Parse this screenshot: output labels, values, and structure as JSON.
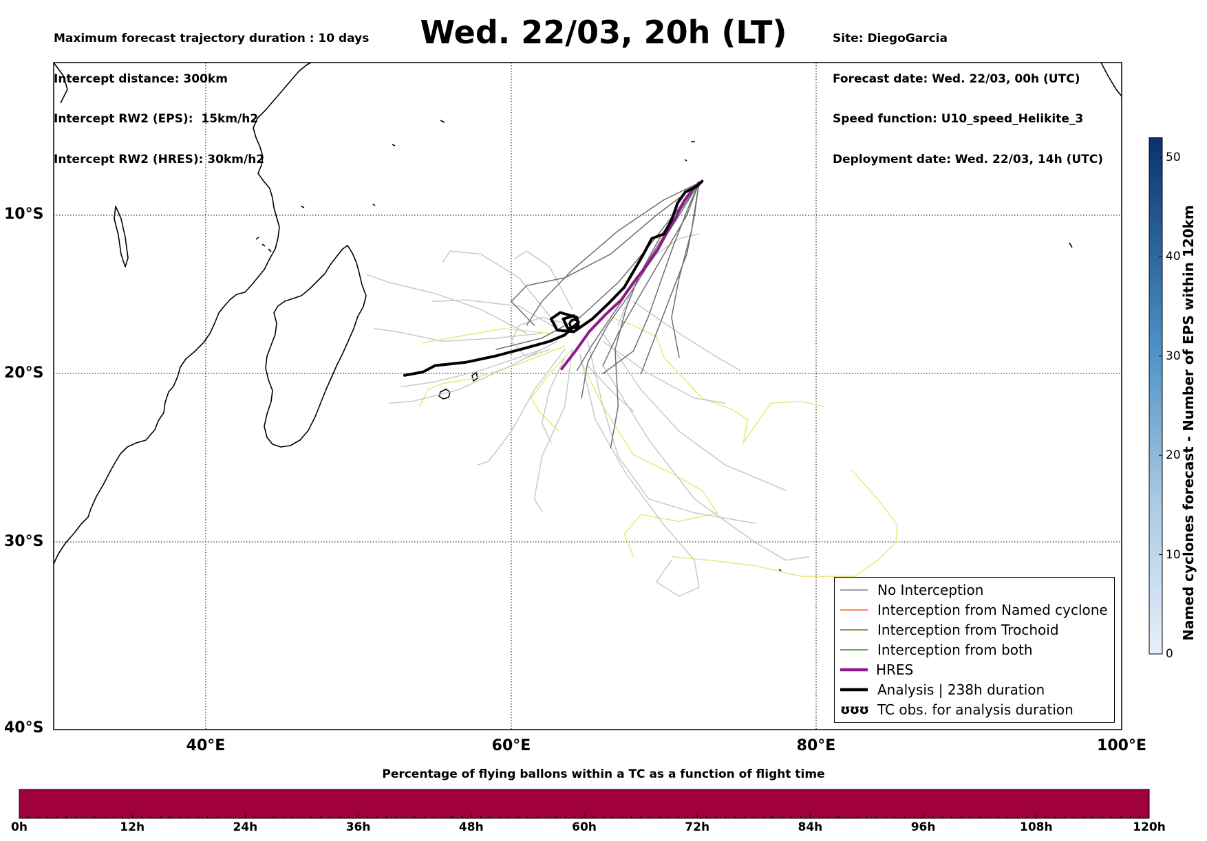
{
  "header": {
    "info_left": [
      "Maximum forecast trajectory duration : 10 days",
      "Intercept distance: 300km",
      "Intercept RW2 (EPS):  15km/h2",
      "Intercept RW2 (HRES): 30km/h2"
    ],
    "title": "Wed. 22/03, 20h (LT)",
    "info_right": [
      "Site: DiegoGarcia",
      "Forecast date: Wed. 22/03, 00h (UTC)",
      "Speed function: U10_speed_Helikite_3",
      "Deployment date: Wed. 22/03, 14h (UTC)"
    ]
  },
  "map": {
    "lat_labels": [
      "10°S",
      "20°S",
      "30°S",
      "40°S"
    ],
    "lon_labels": [
      "40°E",
      "60°E",
      "80°E",
      "100°E"
    ],
    "extent": {
      "lon_min": 30,
      "lon_max": 100,
      "lat_min": -40,
      "lat_max": -1
    }
  },
  "legend": {
    "items": [
      {
        "label": "No Interception",
        "color": "#808080"
      },
      {
        "label": "Interception from Named cyclone",
        "color": "#ff5a1e"
      },
      {
        "label": "Interception from Trochoid",
        "color": "#7a6a14"
      },
      {
        "label": "Interception from both",
        "color": "#1a9a1a"
      },
      {
        "label": "HRES",
        "color": "#8b1a8b"
      },
      {
        "label": "Analysis | 238h duration",
        "color": "#000000"
      },
      {
        "label": "TC obs. for analysis duration",
        "glyph": "ʊʊʊ"
      }
    ]
  },
  "colorbar_right": {
    "label": "Named cyclones forecast - Number of EPS within 120km",
    "ticks": [
      "0",
      "10",
      "20",
      "30",
      "40",
      "50"
    ],
    "min": 0,
    "max": 52
  },
  "colorbar_bottom": {
    "title": "Percentage of flying ballons within a TC as a function of flight time",
    "ticks": [
      "0h",
      "12h",
      "24h",
      "36h",
      "48h",
      "60h",
      "72h",
      "84h",
      "96h",
      "108h",
      "120h"
    ],
    "fill_color": "#a0003c"
  },
  "colors": {
    "eps_dark": "#6e6e6e",
    "eps_light": "#c8c8c8",
    "eps_yellow": "#ece67a",
    "hres": "#8b1a8b",
    "analysis": "#000000"
  },
  "tracks": {
    "analysis": [
      [
        53,
        -20.1
      ],
      [
        54.2,
        -19.9
      ],
      [
        55,
        -19.5
      ],
      [
        57,
        -19.3
      ],
      [
        59,
        -18.9
      ],
      [
        61,
        -18.4
      ],
      [
        62.5,
        -18
      ],
      [
        63.5,
        -17.6
      ],
      [
        64.4,
        -16.8
      ],
      [
        64.1,
        -16.4
      ],
      [
        63.4,
        -16.6
      ],
      [
        63.7,
        -17.2
      ],
      [
        64.4,
        -17.1
      ],
      [
        64.3,
        -16.5
      ],
      [
        63.2,
        -16.2
      ],
      [
        62.6,
        -16.6
      ],
      [
        63,
        -17.3
      ],
      [
        64.1,
        -17.4
      ],
      [
        65.3,
        -16.6
      ],
      [
        66.4,
        -15.6
      ],
      [
        67.4,
        -14.6
      ],
      [
        68,
        -13.6
      ],
      [
        68.6,
        -12.6
      ],
      [
        69.2,
        -11.5
      ],
      [
        70,
        -11.2
      ],
      [
        70.5,
        -10.3
      ],
      [
        70.9,
        -9.2
      ],
      [
        71.4,
        -8.5
      ],
      [
        72.2,
        -8.1
      ],
      [
        72.5,
        -7.8
      ]
    ],
    "hres": [
      [
        63.3,
        -19.7
      ],
      [
        64.2,
        -18.6
      ],
      [
        65.1,
        -17.4
      ],
      [
        66.2,
        -16.3
      ],
      [
        67.2,
        -15.4
      ],
      [
        68,
        -14.3
      ],
      [
        68.8,
        -13.3
      ],
      [
        69.6,
        -12.2
      ],
      [
        70.2,
        -11.1
      ],
      [
        70.8,
        -10.1
      ],
      [
        71.3,
        -9.1
      ],
      [
        71.9,
        -8.3
      ],
      [
        72.3,
        -7.9
      ]
    ],
    "eps_dark": [
      [
        [
          72.3,
          -7.9
        ],
        [
          71,
          -9.5
        ],
        [
          69,
          -12
        ],
        [
          67,
          -14.3
        ],
        [
          64.5,
          -16.5
        ],
        [
          62,
          -17.8
        ],
        [
          59,
          -18.5
        ]
      ],
      [
        [
          72.3,
          -7.9
        ],
        [
          71.5,
          -10
        ],
        [
          70,
          -12.5
        ],
        [
          68.5,
          -15
        ],
        [
          67,
          -17.5
        ],
        [
          66,
          -19.5
        ]
      ],
      [
        [
          72.3,
          -7.9
        ],
        [
          72,
          -10
        ],
        [
          71.5,
          -12.5
        ],
        [
          70.5,
          -15
        ],
        [
          69.5,
          -17.5
        ],
        [
          68.5,
          -20
        ]
      ],
      [
        [
          72.3,
          -7.9
        ],
        [
          70,
          -9
        ],
        [
          67,
          -11
        ],
        [
          64,
          -13.5
        ],
        [
          62,
          -15.5
        ],
        [
          61,
          -17
        ]
      ],
      [
        [
          72.3,
          -7.9
        ],
        [
          71.2,
          -9.2
        ],
        [
          69.7,
          -11.5
        ],
        [
          68.4,
          -13.8
        ],
        [
          67.5,
          -16
        ],
        [
          66.8,
          -18.5
        ],
        [
          67,
          -22
        ],
        [
          66.5,
          -24.5
        ]
      ],
      [
        [
          72.3,
          -7.9
        ],
        [
          70.5,
          -10.5
        ],
        [
          68.6,
          -13.5
        ],
        [
          66.8,
          -16.1
        ],
        [
          65.3,
          -18.2
        ],
        [
          64.3,
          -19.8
        ]
      ],
      [
        [
          72.3,
          -7.9
        ],
        [
          71.8,
          -11
        ],
        [
          71,
          -14
        ],
        [
          70.5,
          -16.5
        ],
        [
          71,
          -19
        ]
      ],
      [
        [
          72.3,
          -7.9
        ],
        [
          69.5,
          -10
        ],
        [
          66.5,
          -12.5
        ],
        [
          63.5,
          -14
        ],
        [
          61,
          -14.5
        ],
        [
          60,
          -15.5
        ],
        [
          61.5,
          -17
        ]
      ],
      [
        [
          72.3,
          -7.9
        ],
        [
          71,
          -10
        ],
        [
          69.5,
          -12.3
        ],
        [
          68,
          -14.7
        ],
        [
          66.3,
          -17
        ],
        [
          65,
          -19.3
        ],
        [
          64.6,
          -21.5
        ]
      ],
      [
        [
          72.3,
          -7.9
        ],
        [
          71.6,
          -9.5
        ],
        [
          70.6,
          -12
        ],
        [
          69.8,
          -14.2
        ],
        [
          69,
          -16.4
        ],
        [
          68,
          -18.6
        ],
        [
          66,
          -20
        ]
      ]
    ],
    "eps_light": [
      [
        [
          61,
          -17.5
        ],
        [
          58,
          -16
        ],
        [
          55,
          -15
        ],
        [
          52,
          -14.3
        ],
        [
          50.5,
          -13.8
        ]
      ],
      [
        [
          62,
          -17.5
        ],
        [
          59,
          -17.8
        ],
        [
          55.5,
          -18
        ],
        [
          52.5,
          -17.4
        ],
        [
          51,
          -17.2
        ]
      ],
      [
        [
          63,
          -18
        ],
        [
          60,
          -19.5
        ],
        [
          56.5,
          -21
        ],
        [
          53.5,
          -21.7
        ],
        [
          52,
          -21.8
        ]
      ],
      [
        [
          63.5,
          -18.5
        ],
        [
          61.5,
          -21
        ],
        [
          60,
          -23.5
        ],
        [
          58.5,
          -25.3
        ],
        [
          57.8,
          -25.5
        ]
      ],
      [
        [
          64,
          -18.5
        ],
        [
          63.5,
          -22
        ],
        [
          62,
          -25
        ],
        [
          61.5,
          -27.5
        ],
        [
          62,
          -28.2
        ]
      ],
      [
        [
          65,
          -18
        ],
        [
          66,
          -22
        ],
        [
          67,
          -25
        ],
        [
          69,
          -27.5
        ],
        [
          72,
          -28.3
        ],
        [
          76,
          -28.9
        ]
      ],
      [
        [
          66,
          -17.5
        ],
        [
          68.5,
          -21
        ],
        [
          71,
          -23.5
        ],
        [
          74,
          -25.5
        ],
        [
          78,
          -27
        ]
      ],
      [
        [
          64.5,
          -18.8
        ],
        [
          65.5,
          -22.8
        ],
        [
          67.5,
          -26
        ],
        [
          70,
          -29
        ],
        [
          72,
          -31
        ],
        [
          72.3,
          -32.5
        ],
        [
          71,
          -33
        ],
        [
          69.5,
          -32.2
        ],
        [
          70.5,
          -31
        ]
      ],
      [
        [
          63,
          -17
        ],
        [
          60.5,
          -14
        ],
        [
          58,
          -12.5
        ],
        [
          56,
          -12.3
        ],
        [
          55.5,
          -13
        ]
      ],
      [
        [
          64,
          -16
        ],
        [
          62.5,
          -13.3
        ],
        [
          61,
          -12.3
        ],
        [
          60.2,
          -12.8
        ]
      ],
      [
        [
          68,
          -15.5
        ],
        [
          71,
          -17.5
        ],
        [
          73.5,
          -19
        ],
        [
          75,
          -19.8
        ]
      ],
      [
        [
          66,
          -19.5
        ],
        [
          69,
          -24
        ],
        [
          72,
          -27.5
        ],
        [
          76,
          -30
        ],
        [
          78,
          -31
        ],
        [
          79.5,
          -30.8
        ]
      ],
      [
        [
          62,
          -18.5
        ],
        [
          58,
          -19.8
        ],
        [
          55,
          -20.5
        ],
        [
          52.8,
          -20.8
        ]
      ],
      [
        [
          63.5,
          -19
        ],
        [
          62.5,
          -21
        ],
        [
          62,
          -23
        ],
        [
          62.6,
          -24.2
        ]
      ],
      [
        [
          67,
          -17
        ],
        [
          68,
          -14.5
        ],
        [
          69.5,
          -12.5
        ],
        [
          71,
          -11.5
        ],
        [
          72.3,
          -11.2
        ]
      ],
      [
        [
          64,
          -17
        ],
        [
          62,
          -16.5
        ],
        [
          60.5,
          -17
        ],
        [
          60,
          -18
        ],
        [
          61,
          -19
        ],
        [
          62.5,
          -18.5
        ]
      ],
      [
        [
          66,
          -18
        ],
        [
          69,
          -20
        ],
        [
          72,
          -21.5
        ],
        [
          74,
          -21.8
        ]
      ],
      [
        [
          63.5,
          -17.5
        ],
        [
          60.5,
          -15.8
        ],
        [
          57,
          -15.4
        ],
        [
          54.8,
          -15.5
        ]
      ],
      [
        [
          65,
          -19.5
        ],
        [
          66.8,
          -21.3
        ],
        [
          68,
          -22.3
        ]
      ]
    ],
    "eps_yellow": [
      [
        [
          62.5,
          -17.5
        ],
        [
          59.5,
          -17.2
        ],
        [
          56.5,
          -17.7
        ],
        [
          54.2,
          -18.1
        ]
      ],
      [
        [
          63.5,
          -18.3
        ],
        [
          60.5,
          -19.4
        ],
        [
          57.5,
          -20.3
        ],
        [
          55.5,
          -20.6
        ],
        [
          54.5,
          -21
        ],
        [
          54,
          -22
        ]
      ],
      [
        [
          64,
          -18.5
        ],
        [
          62.5,
          -20
        ],
        [
          61.3,
          -21.5
        ],
        [
          61.8,
          -22.3
        ],
        [
          63.1,
          -23.5
        ]
      ],
      [
        [
          64.5,
          -19.1
        ],
        [
          66,
          -22
        ],
        [
          68,
          -24.9
        ],
        [
          70.5,
          -26
        ],
        [
          72.5,
          -27
        ],
        [
          73.5,
          -28.3
        ],
        [
          71,
          -28.8
        ],
        [
          68.5,
          -28.4
        ],
        [
          67.4,
          -29.5
        ],
        [
          68,
          -30.8
        ]
      ],
      [
        [
          66.5,
          -16.5
        ],
        [
          68,
          -17
        ],
        [
          69.5,
          -17.7
        ],
        [
          70,
          -19
        ],
        [
          72.5,
          -21.5
        ],
        [
          74.5,
          -22.2
        ],
        [
          75.5,
          -22.8
        ],
        [
          75.2,
          -24.2
        ],
        [
          77,
          -21.8
        ],
        [
          79,
          -21.7
        ],
        [
          80.5,
          -22
        ]
      ],
      [
        [
          70.5,
          -30.8
        ],
        [
          73,
          -31
        ],
        [
          76,
          -31.3
        ],
        [
          79,
          -31.9
        ],
        [
          82.5,
          -31.9
        ],
        [
          84,
          -31
        ],
        [
          85.2,
          -30
        ],
        [
          85.3,
          -29
        ],
        [
          84,
          -27.5
        ],
        [
          82.3,
          -25.8
        ]
      ]
    ],
    "tc_obs": [
      [
        64.1,
        -16.9
      ]
    ]
  }
}
